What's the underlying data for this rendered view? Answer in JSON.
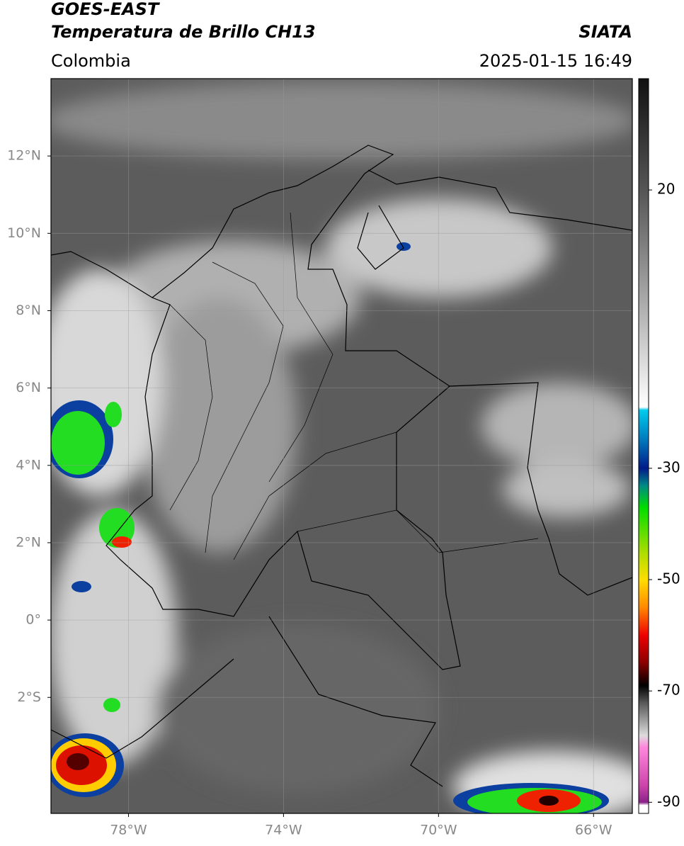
{
  "header": {
    "title": "GOES-EAST",
    "subtitle": "Temperatura de Brillo CH13",
    "source": "SIATA",
    "region": "Colombia",
    "timestamp": "2025-01-15 16:49"
  },
  "map": {
    "lonlim": [
      -80,
      -65
    ],
    "latlim": [
      -5,
      14
    ],
    "lon_ticks": [
      {
        "value": -78,
        "label": "78°W"
      },
      {
        "value": -74,
        "label": "74°W"
      },
      {
        "value": -70,
        "label": "70°W"
      },
      {
        "value": -66,
        "label": "66°W"
      }
    ],
    "lat_ticks": [
      {
        "value": 12,
        "label": "12°N"
      },
      {
        "value": 10,
        "label": "10°N"
      },
      {
        "value": 8,
        "label": "8°N"
      },
      {
        "value": 6,
        "label": "6°N"
      },
      {
        "value": 4,
        "label": "4°N"
      },
      {
        "value": 2,
        "label": "2°N"
      },
      {
        "value": 0,
        "label": "0°"
      },
      {
        "value": -2,
        "label": "2°S"
      }
    ],
    "grid": true,
    "colorbar": {
      "lim": [
        -92,
        40
      ],
      "ticks": [
        20,
        -30,
        -50,
        -70,
        -90
      ],
      "stops": [
        {
          "value": 40,
          "color": "#111111"
        },
        {
          "value": 30,
          "color": "#333333"
        },
        {
          "value": 20,
          "color": "#555555"
        },
        {
          "value": 0,
          "color": "#aaaaaa"
        },
        {
          "value": -19,
          "color": "#ffffff"
        },
        {
          "value": -19.5,
          "color": "#00ccee"
        },
        {
          "value": -25,
          "color": "#0077bb"
        },
        {
          "value": -30,
          "color": "#001a88"
        },
        {
          "value": -33,
          "color": "#008888"
        },
        {
          "value": -37,
          "color": "#00dd00"
        },
        {
          "value": -45,
          "color": "#aadd00"
        },
        {
          "value": -50,
          "color": "#ffdd00"
        },
        {
          "value": -55,
          "color": "#ff8800"
        },
        {
          "value": -60,
          "color": "#ee0000"
        },
        {
          "value": -65,
          "color": "#880000"
        },
        {
          "value": -69,
          "color": "#000000"
        },
        {
          "value": -72,
          "color": "#555555"
        },
        {
          "value": -78,
          "color": "#dddddd"
        },
        {
          "value": -80,
          "color": "#ff88dd"
        },
        {
          "value": -87,
          "color": "#cc44aa"
        },
        {
          "value": -90,
          "color": "#882288"
        },
        {
          "value": -90.5,
          "color": "#ffffff"
        },
        {
          "value": -92,
          "color": "#ffffff"
        }
      ]
    }
  }
}
